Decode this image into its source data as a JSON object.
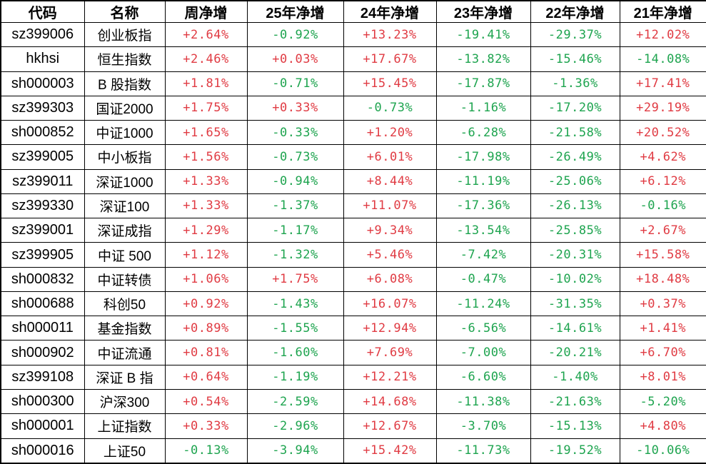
{
  "colors": {
    "positive": "#e03b43",
    "negative": "#1ea44f",
    "border": "#000000",
    "header_text": "#000000",
    "code_text": "#000000",
    "background": "#ffffff"
  },
  "chart_data": {
    "type": "table",
    "columns": [
      "代码",
      "名称",
      "周净增",
      "25年净增",
      "24年净增",
      "23年净增",
      "22年净增",
      "21年净增"
    ],
    "rows": [
      {
        "code": "sz399006",
        "name": "创业板指",
        "values": [
          "+2.64%",
          "-0.92%",
          "+13.23%",
          "-19.41%",
          "-29.37%",
          "+12.02%"
        ]
      },
      {
        "code": "hkhsi",
        "name": "恒生指数",
        "values": [
          "+2.46%",
          "+0.03%",
          "+17.67%",
          "-13.82%",
          "-15.46%",
          "-14.08%"
        ]
      },
      {
        "code": "sh000003",
        "name": "B 股指数",
        "values": [
          "+1.81%",
          "-0.71%",
          "+15.45%",
          "-17.87%",
          "-1.36%",
          "+17.41%"
        ]
      },
      {
        "code": "sz399303",
        "name": "国证2000",
        "values": [
          "+1.75%",
          "+0.33%",
          "-0.73%",
          "-1.16%",
          "-17.20%",
          "+29.19%"
        ]
      },
      {
        "code": "sh000852",
        "name": "中证1000",
        "values": [
          "+1.65%",
          "-0.33%",
          "+1.20%",
          "-6.28%",
          "-21.58%",
          "+20.52%"
        ]
      },
      {
        "code": "sz399005",
        "name": "中小板指",
        "values": [
          "+1.56%",
          "-0.73%",
          "+6.01%",
          "-17.98%",
          "-26.49%",
          "+4.62%"
        ]
      },
      {
        "code": "sz399011",
        "name": "深证1000",
        "values": [
          "+1.33%",
          "-0.94%",
          "+8.44%",
          "-11.19%",
          "-25.06%",
          "+6.12%"
        ]
      },
      {
        "code": "sz399330",
        "name": "深证100",
        "values": [
          "+1.33%",
          "-1.37%",
          "+11.07%",
          "-17.36%",
          "-26.13%",
          "-0.16%"
        ]
      },
      {
        "code": "sz399001",
        "name": "深证成指",
        "values": [
          "+1.29%",
          "-1.17%",
          "+9.34%",
          "-13.54%",
          "-25.85%",
          "+2.67%"
        ]
      },
      {
        "code": "sz399905",
        "name": "中证 500",
        "values": [
          "+1.12%",
          "-1.32%",
          "+5.46%",
          "-7.42%",
          "-20.31%",
          "+15.58%"
        ]
      },
      {
        "code": "sh000832",
        "name": "中证转债",
        "values": [
          "+1.06%",
          "+1.75%",
          "+6.08%",
          "-0.47%",
          "-10.02%",
          "+18.48%"
        ]
      },
      {
        "code": "sh000688",
        "name": "科创50",
        "values": [
          "+0.92%",
          "-1.43%",
          "+16.07%",
          "-11.24%",
          "-31.35%",
          "+0.37%"
        ]
      },
      {
        "code": "sh000011",
        "name": "基金指数",
        "values": [
          "+0.89%",
          "-1.55%",
          "+12.94%",
          "-6.56%",
          "-14.61%",
          "+1.41%"
        ]
      },
      {
        "code": "sh000902",
        "name": "中证流通",
        "values": [
          "+0.81%",
          "-1.60%",
          "+7.69%",
          "-7.00%",
          "-20.21%",
          "+6.70%"
        ]
      },
      {
        "code": "sz399108",
        "name": "深证 B 指",
        "values": [
          "+0.64%",
          "-1.19%",
          "+12.21%",
          "-6.60%",
          "-1.40%",
          "+8.01%"
        ]
      },
      {
        "code": "sh000300",
        "name": "沪深300",
        "values": [
          "+0.54%",
          "-2.59%",
          "+14.68%",
          "-11.38%",
          "-21.63%",
          "-5.20%"
        ]
      },
      {
        "code": "sh000001",
        "name": "上证指数",
        "values": [
          "+0.33%",
          "-2.96%",
          "+12.67%",
          "-3.70%",
          "-15.13%",
          "+4.80%"
        ]
      },
      {
        "code": "sh000016",
        "name": "上证50",
        "values": [
          "-0.13%",
          "-3.94%",
          "+15.42%",
          "-11.73%",
          "-19.52%",
          "-10.06%"
        ]
      }
    ]
  }
}
